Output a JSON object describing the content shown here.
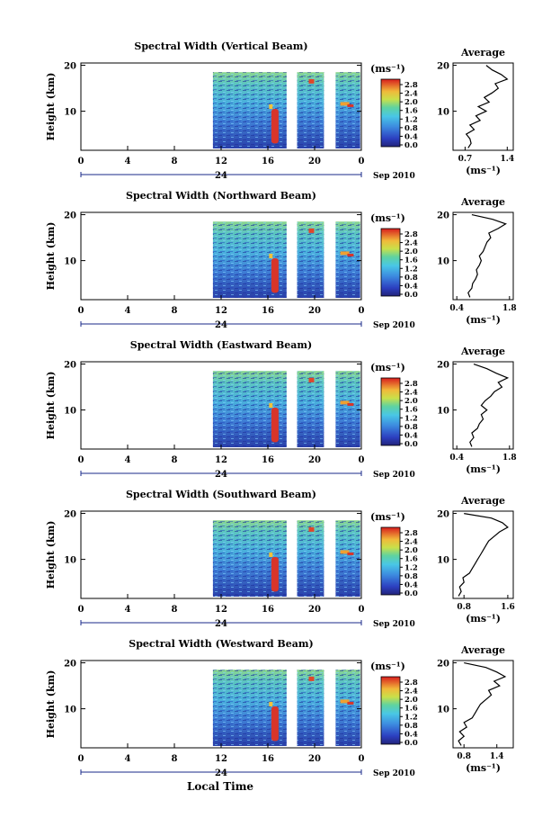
{
  "date_label": "Sep 2010",
  "xlabel_bottom": "Local Time",
  "colorbar_unit": "(ms⁻¹)",
  "avg_title": "Average",
  "avg_unit": "(ms⁻¹)",
  "ylabel": "Height (km)",
  "day_label": "24",
  "colors": {
    "low": "#1f1f9a",
    "mid": "#4aa3d8",
    "high": "#d42c1c"
  },
  "chart_data": [
    {
      "type": "heatmap",
      "title": "Spectral Width (Vertical Beam)",
      "xticks": [
        "0",
        "4",
        "8",
        "12",
        "16",
        "20",
        "0"
      ],
      "yticks": [
        "10",
        "20"
      ],
      "colorbar_ticks": [
        "0.0",
        "0.4",
        "0.8",
        "1.2",
        "1.6",
        "2.0",
        "2.4",
        "2.8"
      ],
      "avg_xticks": [
        "0.7",
        "1.4"
      ],
      "avg_xlim": [
        0.5,
        1.5
      ],
      "avg_profile": {
        "height": [
          2,
          3,
          4,
          5,
          6,
          7,
          8,
          9,
          10,
          11,
          12,
          13,
          14,
          15,
          16,
          17,
          18,
          19,
          20
        ],
        "value": [
          0.75,
          0.8,
          0.78,
          0.72,
          0.85,
          0.78,
          0.95,
          0.88,
          1.05,
          0.92,
          1.1,
          1.02,
          1.15,
          1.25,
          1.2,
          1.4,
          1.3,
          1.15,
          1.05
        ]
      }
    },
    {
      "type": "heatmap",
      "title": "Spectral Width (Northward Beam)",
      "xticks": [
        "0",
        "4",
        "8",
        "12",
        "16",
        "20",
        "0"
      ],
      "yticks": [
        "10",
        "20"
      ],
      "colorbar_ticks": [
        "0.0",
        "0.4",
        "0.8",
        "1.2",
        "1.6",
        "2.0",
        "2.4",
        "2.8"
      ],
      "avg_xticks": [
        "0.4",
        "1.8"
      ],
      "avg_xlim": [
        0.3,
        1.9
      ],
      "avg_profile": {
        "height": [
          2,
          3,
          4,
          5,
          6,
          7,
          8,
          9,
          10,
          11,
          12,
          13,
          14,
          15,
          16,
          17,
          18,
          19,
          20
        ],
        "value": [
          0.75,
          0.7,
          0.8,
          0.82,
          0.9,
          0.95,
          0.92,
          1.0,
          1.05,
          1.0,
          1.1,
          1.15,
          1.2,
          1.3,
          1.25,
          1.5,
          1.7,
          1.35,
          0.8
        ]
      }
    },
    {
      "type": "heatmap",
      "title": "Spectral Width (Eastward Beam)",
      "xticks": [
        "0",
        "4",
        "8",
        "12",
        "16",
        "20",
        "0"
      ],
      "yticks": [
        "10",
        "20"
      ],
      "colorbar_ticks": [
        "0.0",
        "0.4",
        "0.8",
        "1.2",
        "1.6",
        "2.0",
        "2.4",
        "2.8"
      ],
      "avg_xticks": [
        "0.4",
        "1.8"
      ],
      "avg_xlim": [
        0.3,
        1.9
      ],
      "avg_profile": {
        "height": [
          2,
          3,
          4,
          5,
          6,
          7,
          8,
          9,
          10,
          11,
          12,
          13,
          14,
          15,
          16,
          17,
          18,
          19,
          20
        ],
        "value": [
          0.8,
          0.75,
          0.85,
          0.8,
          0.95,
          1.0,
          1.1,
          1.05,
          1.2,
          1.05,
          1.15,
          1.3,
          1.4,
          1.6,
          1.5,
          1.75,
          1.45,
          1.2,
          0.85
        ]
      }
    },
    {
      "type": "heatmap",
      "title": "Spectral Width (Southward Beam)",
      "xticks": [
        "0",
        "4",
        "8",
        "12",
        "16",
        "20",
        "0"
      ],
      "yticks": [
        "10",
        "20"
      ],
      "colorbar_ticks": [
        "0.0",
        "0.4",
        "0.8",
        "1.2",
        "1.6",
        "2.0",
        "2.4",
        "2.8"
      ],
      "avg_xticks": [
        "0.8",
        "1.6"
      ],
      "avg_xlim": [
        0.6,
        1.7
      ],
      "avg_profile": {
        "height": [
          2,
          3,
          4,
          5,
          6,
          7,
          8,
          9,
          10,
          11,
          12,
          13,
          14,
          15,
          16,
          17,
          18,
          19,
          20
        ],
        "value": [
          0.7,
          0.75,
          0.72,
          0.8,
          0.78,
          0.9,
          0.95,
          1.0,
          1.05,
          1.1,
          1.15,
          1.2,
          1.25,
          1.35,
          1.45,
          1.6,
          1.5,
          1.3,
          0.8
        ]
      }
    },
    {
      "type": "heatmap",
      "title": "Spectral Width (Westward Beam)",
      "xticks": [
        "0",
        "4",
        "8",
        "12",
        "16",
        "20",
        "0"
      ],
      "yticks": [
        "10",
        "20"
      ],
      "colorbar_ticks": [
        "0.0",
        "0.4",
        "0.8",
        "1.2",
        "1.6",
        "2.0",
        "2.4",
        "2.8"
      ],
      "avg_xticks": [
        "0.8",
        "1.4"
      ],
      "avg_xlim": [
        0.6,
        1.7
      ],
      "avg_profile": {
        "height": [
          2,
          3,
          4,
          5,
          6,
          7,
          8,
          9,
          10,
          11,
          12,
          13,
          14,
          15,
          16,
          17,
          18,
          19,
          20
        ],
        "value": [
          0.75,
          0.7,
          0.8,
          0.72,
          0.85,
          0.8,
          0.95,
          1.0,
          1.05,
          1.1,
          1.2,
          1.3,
          1.25,
          1.45,
          1.35,
          1.55,
          1.4,
          1.2,
          0.8
        ]
      }
    }
  ]
}
